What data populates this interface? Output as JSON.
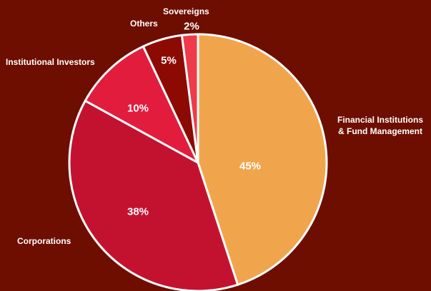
{
  "chart_data": {
    "type": "pie",
    "categories": [
      "Financial Institutions\n& Fund Management",
      "Corporations",
      "Institutional Investors",
      "Others",
      "Sovereigns"
    ],
    "values": [
      45,
      38,
      10,
      5,
      2
    ],
    "value_labels": [
      "45%",
      "38%",
      "10%",
      "5%",
      "2%"
    ],
    "colors": [
      "#f0a54d",
      "#c31230",
      "#e21c3d",
      "#8c0a02",
      "#ee3a4b"
    ]
  }
}
